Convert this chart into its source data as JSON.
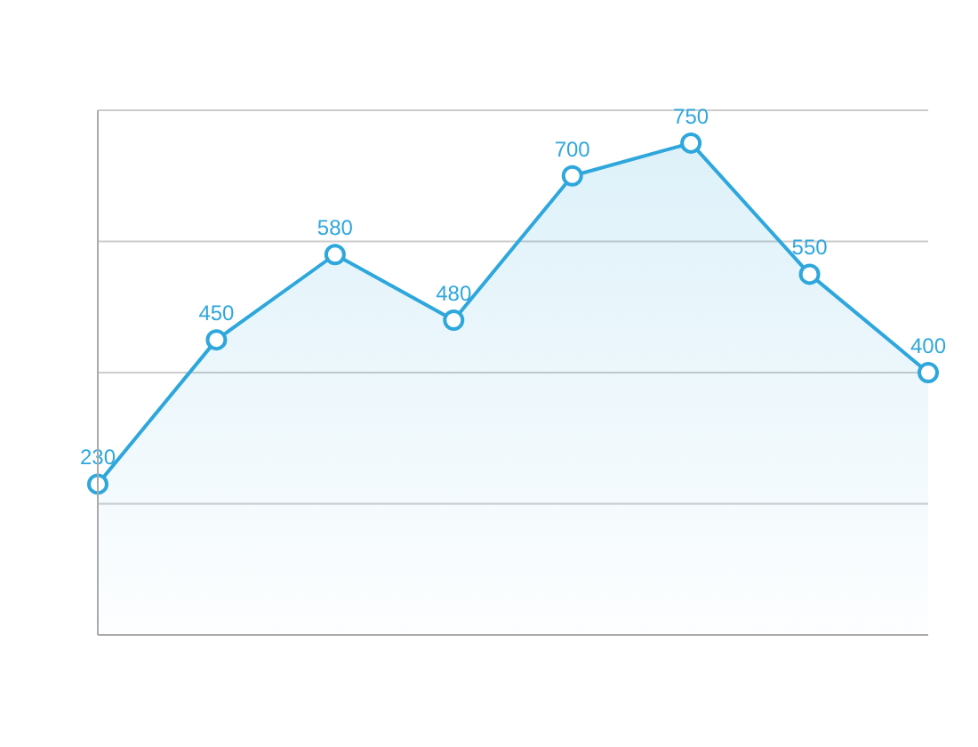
{
  "chart_data": {
    "type": "area",
    "categories": [
      null,
      null,
      null,
      null,
      null,
      null,
      null,
      null
    ],
    "series": [
      {
        "color": "#2ea7dc",
        "values": [
          230,
          450,
          580,
          480,
          700,
          750,
          550,
          400
        ]
      }
    ],
    "ylim": [
      0,
      800
    ],
    "yticks": [
      {
        "value": 0,
        "label": null
      },
      {
        "value": 200,
        "label": null
      },
      {
        "value": 400,
        "label": null
      },
      {
        "value": 600,
        "label": null
      },
      {
        "value": 800,
        "label": null
      }
    ],
    "grid": "y",
    "marker": "circle",
    "data_labels": true
  }
}
